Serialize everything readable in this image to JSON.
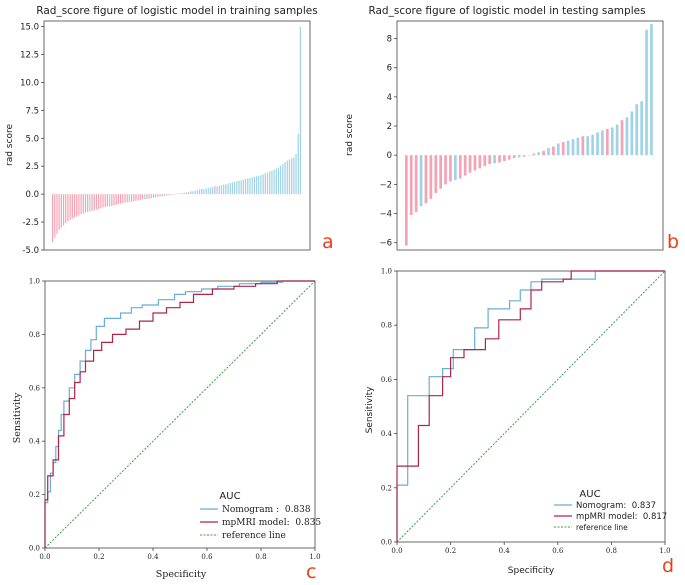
{
  "colors": {
    "pink": "#f5a3b3",
    "blue": "#9fd3e6",
    "roc_blue": "#6aaed6",
    "roc_red": "#b0244a",
    "ref_green": "#3aa04a",
    "letter": "#e8401c"
  },
  "chart_data": [
    {
      "type": "bar",
      "panel_letter": "a",
      "title": "Rad_score figure of logistic model in training samples",
      "xlabel": "",
      "ylabel": "rad score",
      "ylim": [
        -5.0,
        15.5
      ],
      "yticks": [
        "15.0",
        "12.5",
        "10.0",
        "7.5",
        "5.0",
        "2.5",
        "0.0",
        "-2.5",
        "-5.0"
      ],
      "ytick_values": [
        15,
        12.5,
        10,
        7.5,
        5,
        2.5,
        0,
        -2.5,
        -5
      ],
      "series": [
        {
          "name": "pink",
          "values": [
            -4.3,
            -3.9,
            -3.55,
            -3.2,
            -3.0,
            -2.8,
            -2.6,
            -2.45,
            -2.3,
            -2.2,
            -2.1,
            -2.0,
            -1.9,
            -1.8,
            -1.72,
            -1.65,
            -1.58,
            -1.5,
            -1.44,
            -1.38,
            -1.32,
            -1.26,
            -1.2,
            -1.15,
            -1.1,
            -1.05,
            -1.0,
            -0.95,
            -0.9,
            -0.85,
            -0.8,
            -0.76,
            -0.72,
            -0.68,
            -0.64,
            -0.6,
            -0.56,
            -0.52,
            -0.48,
            -0.44,
            -0.4,
            -0.36,
            -0.32,
            -0.28,
            -0.24,
            -0.2,
            -0.16,
            -0.12,
            -0.08,
            -0.04,
            0.0,
            0.05,
            0.12,
            0.25,
            0.45,
            0.7
          ]
        },
        {
          "name": "blue",
          "values": [
            -1.55,
            -1.1,
            -0.7,
            -0.45,
            -0.2,
            0.0,
            0.05,
            0.1,
            0.15,
            0.2,
            0.25,
            0.3,
            0.35,
            0.4,
            0.45,
            0.5,
            0.55,
            0.6,
            0.65,
            0.7,
            0.75,
            0.8,
            0.85,
            0.9,
            0.95,
            1.0,
            1.05,
            1.1,
            1.15,
            1.2,
            1.25,
            1.3,
            1.35,
            1.4,
            1.45,
            1.5,
            1.55,
            1.6,
            1.65,
            1.7,
            1.78,
            1.86,
            1.94,
            2.02,
            2.1,
            2.2,
            2.3,
            2.4,
            2.55,
            2.7,
            2.85,
            3.0,
            3.1,
            3.2,
            3.3,
            3.6,
            5.4,
            15.0
          ]
        }
      ]
    },
    {
      "type": "bar",
      "panel_letter": "b",
      "title": "Rad_score figure of logistic model in testing samples",
      "xlabel": "",
      "ylabel": "rad score",
      "ylim": [
        -6.5,
        9.2
      ],
      "yticks": [
        "8",
        "6",
        "4",
        "2",
        "0",
        "−2",
        "−4",
        "−6"
      ],
      "ytick_values": [
        8,
        6,
        4,
        2,
        0,
        -2,
        -4,
        -6
      ],
      "series": [
        {
          "name": "pink",
          "values": [
            -6.2,
            -4.1,
            -3.9,
            -3.3,
            -3.0,
            -2.6,
            -2.3,
            -2.0,
            -1.8,
            -1.6,
            -1.4,
            -1.2,
            -1.05,
            -0.9,
            -0.75,
            -0.6,
            -0.5,
            -0.4,
            -0.3,
            -0.2,
            -0.1,
            0.1,
            0.3,
            0.6,
            0.9,
            1.3,
            1.8,
            2.4
          ]
        },
        {
          "name": "blue",
          "values": [
            -3.5,
            -1.7,
            -0.55,
            -0.15,
            0.0,
            0.2,
            0.5,
            0.8,
            1.0,
            1.1,
            1.2,
            1.3,
            1.4,
            1.55,
            1.7,
            1.9,
            2.1,
            2.6,
            3.0,
            3.5,
            3.7,
            8.6,
            9.0
          ]
        }
      ]
    },
    {
      "type": "line",
      "panel_letter": "c",
      "title": "",
      "xlabel": "Specificity",
      "ylabel": "Sensitivity",
      "xlim": [
        0,
        1
      ],
      "ylim": [
        0,
        1
      ],
      "xticks": [
        "0.0",
        "0.2",
        "0.4",
        "0.6",
        "0.8",
        "1.0"
      ],
      "yticks": [
        "0.0",
        "0.2",
        "0.4",
        "0.6",
        "0.8",
        "1.0"
      ],
      "tick_values": [
        0,
        0.2,
        0.4,
        0.6,
        0.8,
        1.0
      ],
      "legend_title": "AUC",
      "legend_position": "bottom-right",
      "series": [
        {
          "name": "Nomogram",
          "auc_label": "0.838",
          "x": [
            0,
            0,
            0.01,
            0.01,
            0.02,
            0.02,
            0.03,
            0.03,
            0.04,
            0.04,
            0.05,
            0.05,
            0.06,
            0.06,
            0.07,
            0.07,
            0.09,
            0.09,
            0.11,
            0.11,
            0.13,
            0.13,
            0.15,
            0.15,
            0.17,
            0.17,
            0.19,
            0.19,
            0.22,
            0.22,
            0.25,
            0.25,
            0.28,
            0.28,
            0.32,
            0.32,
            0.36,
            0.36,
            0.42,
            0.42,
            0.48,
            0.48,
            0.52,
            0.52,
            0.58,
            0.58,
            0.64,
            0.64,
            0.72,
            0.72,
            0.8,
            0.8,
            0.88,
            0.88,
            1.0
          ],
          "y": [
            0,
            0.17,
            0.17,
            0.21,
            0.21,
            0.28,
            0.28,
            0.32,
            0.32,
            0.38,
            0.38,
            0.44,
            0.44,
            0.5,
            0.5,
            0.55,
            0.55,
            0.6,
            0.6,
            0.65,
            0.65,
            0.7,
            0.7,
            0.74,
            0.74,
            0.78,
            0.78,
            0.83,
            0.83,
            0.86,
            0.86,
            0.86,
            0.86,
            0.88,
            0.88,
            0.9,
            0.9,
            0.91,
            0.91,
            0.93,
            0.93,
            0.95,
            0.95,
            0.96,
            0.96,
            0.97,
            0.97,
            0.98,
            0.98,
            0.99,
            0.99,
            0.995,
            0.995,
            1.0,
            1.0
          ]
        },
        {
          "name": "mpMRI model",
          "auc_label": "0.835",
          "x": [
            0,
            0,
            0.01,
            0.01,
            0.03,
            0.03,
            0.05,
            0.05,
            0.07,
            0.07,
            0.09,
            0.09,
            0.11,
            0.11,
            0.13,
            0.13,
            0.15,
            0.15,
            0.18,
            0.18,
            0.21,
            0.21,
            0.25,
            0.25,
            0.3,
            0.3,
            0.35,
            0.35,
            0.4,
            0.4,
            0.45,
            0.45,
            0.5,
            0.5,
            0.55,
            0.55,
            0.62,
            0.62,
            0.7,
            0.7,
            0.78,
            0.78,
            0.86,
            0.86,
            0.94,
            0.94,
            1.0
          ],
          "y": [
            0,
            0.18,
            0.18,
            0.27,
            0.27,
            0.33,
            0.33,
            0.42,
            0.42,
            0.5,
            0.5,
            0.56,
            0.56,
            0.62,
            0.62,
            0.66,
            0.66,
            0.7,
            0.7,
            0.74,
            0.74,
            0.77,
            0.77,
            0.8,
            0.8,
            0.82,
            0.82,
            0.85,
            0.85,
            0.88,
            0.88,
            0.9,
            0.9,
            0.92,
            0.92,
            0.95,
            0.95,
            0.97,
            0.97,
            0.98,
            0.98,
            0.99,
            0.99,
            1.0,
            1.0,
            1.0,
            1.0
          ]
        },
        {
          "name": "reference line",
          "auc_label": "",
          "x": [
            0,
            1
          ],
          "y": [
            0,
            1
          ]
        }
      ]
    },
    {
      "type": "line",
      "panel_letter": "d",
      "title": "",
      "xlabel": "Specificity",
      "ylabel": "Sensitivity",
      "xlim": [
        0,
        1
      ],
      "ylim": [
        0,
        1
      ],
      "xticks": [
        "0.0",
        "0.2",
        "0.4",
        "0.6",
        "0.8",
        "1.0"
      ],
      "yticks": [
        "0.0",
        "0.2",
        "0.4",
        "0.6",
        "0.8",
        "1.0"
      ],
      "tick_values": [
        0,
        0.2,
        0.4,
        0.6,
        0.8,
        1.0
      ],
      "legend_title": "AUC",
      "legend_position": "bottom-right",
      "series": [
        {
          "name": "Nomogram",
          "auc_label": "0.837",
          "x": [
            0,
            0,
            0.04,
            0.04,
            0.12,
            0.12,
            0.17,
            0.17,
            0.21,
            0.21,
            0.29,
            0.29,
            0.34,
            0.34,
            0.42,
            0.42,
            0.46,
            0.46,
            0.5,
            0.5,
            0.54,
            0.54,
            0.74,
            0.74,
            1.0
          ],
          "y": [
            0,
            0.21,
            0.21,
            0.54,
            0.54,
            0.61,
            0.61,
            0.64,
            0.64,
            0.71,
            0.71,
            0.79,
            0.79,
            0.86,
            0.86,
            0.89,
            0.89,
            0.93,
            0.93,
            0.96,
            0.96,
            0.97,
            0.97,
            1.0,
            1.0
          ]
        },
        {
          "name": "mpMRI model",
          "auc_label": "0.817",
          "x": [
            0,
            0,
            0.08,
            0.08,
            0.12,
            0.12,
            0.17,
            0.17,
            0.2,
            0.2,
            0.25,
            0.25,
            0.33,
            0.33,
            0.38,
            0.38,
            0.46,
            0.46,
            0.5,
            0.5,
            0.54,
            0.54,
            0.62,
            0.62,
            0.65,
            0.65,
            1.0
          ],
          "y": [
            0,
            0.28,
            0.28,
            0.43,
            0.43,
            0.54,
            0.54,
            0.61,
            0.61,
            0.68,
            0.68,
            0.71,
            0.71,
            0.75,
            0.75,
            0.82,
            0.82,
            0.86,
            0.86,
            0.93,
            0.93,
            0.96,
            0.96,
            0.97,
            0.97,
            1.0,
            1.0
          ]
        },
        {
          "name": "reference line",
          "auc_label": "",
          "x": [
            0,
            1
          ],
          "y": [
            0,
            1
          ]
        }
      ]
    }
  ]
}
